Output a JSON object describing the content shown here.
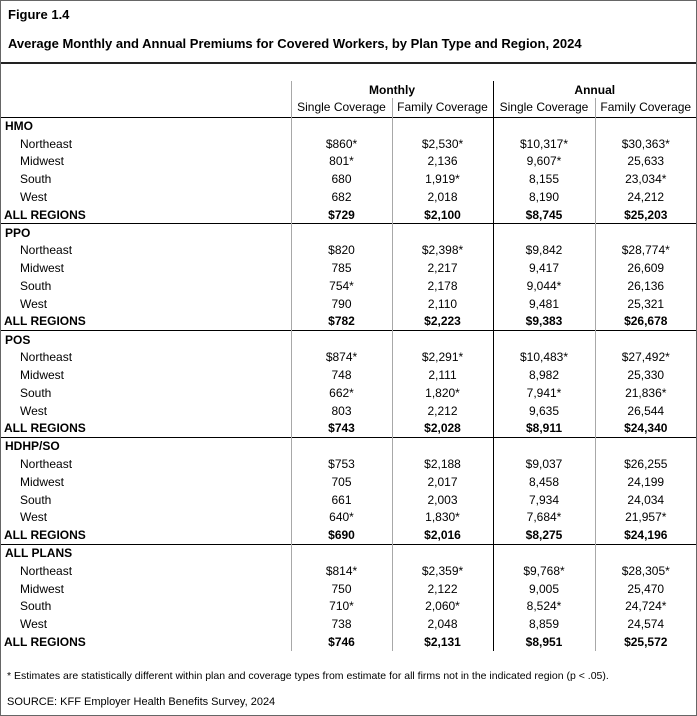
{
  "figure": {
    "label": "Figure 1.4",
    "title": "Average Monthly and Annual Premiums for Covered Workers, by Plan Type and Region, 2024"
  },
  "chart_data": {
    "type": "table",
    "title": "Average Monthly and Annual Premiums for Covered Workers, by Plan Type and Region, 2024",
    "column_groups": [
      "Monthly",
      "Annual"
    ],
    "columns": [
      "Single Coverage",
      "Family Coverage",
      "Single Coverage",
      "Family Coverage"
    ],
    "sections": [
      {
        "plan": "HMO",
        "rows": [
          {
            "label": "Northeast",
            "values": [
              "$860*",
              "$2,530*",
              "$10,317*",
              "$30,363*"
            ],
            "total": false
          },
          {
            "label": "Midwest",
            "values": [
              "801*",
              "2,136",
              "9,607*",
              "25,633"
            ],
            "total": false
          },
          {
            "label": "South",
            "values": [
              "680",
              "1,919*",
              "8,155",
              "23,034*"
            ],
            "total": false
          },
          {
            "label": "West",
            "values": [
              "682",
              "2,018",
              "8,190",
              "24,212"
            ],
            "total": false
          },
          {
            "label": "ALL REGIONS",
            "values": [
              "$729",
              "$2,100",
              "$8,745",
              "$25,203"
            ],
            "total": true
          }
        ]
      },
      {
        "plan": "PPO",
        "rows": [
          {
            "label": "Northeast",
            "values": [
              "$820",
              "$2,398*",
              "$9,842",
              "$28,774*"
            ],
            "total": false
          },
          {
            "label": "Midwest",
            "values": [
              "785",
              "2,217",
              "9,417",
              "26,609"
            ],
            "total": false
          },
          {
            "label": "South",
            "values": [
              "754*",
              "2,178",
              "9,044*",
              "26,136"
            ],
            "total": false
          },
          {
            "label": "West",
            "values": [
              "790",
              "2,110",
              "9,481",
              "25,321"
            ],
            "total": false
          },
          {
            "label": "ALL REGIONS",
            "values": [
              "$782",
              "$2,223",
              "$9,383",
              "$26,678"
            ],
            "total": true
          }
        ]
      },
      {
        "plan": "POS",
        "rows": [
          {
            "label": "Northeast",
            "values": [
              "$874*",
              "$2,291*",
              "$10,483*",
              "$27,492*"
            ],
            "total": false
          },
          {
            "label": "Midwest",
            "values": [
              "748",
              "2,111",
              "8,982",
              "25,330"
            ],
            "total": false
          },
          {
            "label": "South",
            "values": [
              "662*",
              "1,820*",
              "7,941*",
              "21,836*"
            ],
            "total": false
          },
          {
            "label": "West",
            "values": [
              "803",
              "2,212",
              "9,635",
              "26,544"
            ],
            "total": false
          },
          {
            "label": "ALL REGIONS",
            "values": [
              "$743",
              "$2,028",
              "$8,911",
              "$24,340"
            ],
            "total": true
          }
        ]
      },
      {
        "plan": "HDHP/SO",
        "rows": [
          {
            "label": "Northeast",
            "values": [
              "$753",
              "$2,188",
              "$9,037",
              "$26,255"
            ],
            "total": false
          },
          {
            "label": "Midwest",
            "values": [
              "705",
              "2,017",
              "8,458",
              "24,199"
            ],
            "total": false
          },
          {
            "label": "South",
            "values": [
              "661",
              "2,003",
              "7,934",
              "24,034"
            ],
            "total": false
          },
          {
            "label": "West",
            "values": [
              "640*",
              "1,830*",
              "7,684*",
              "21,957*"
            ],
            "total": false
          },
          {
            "label": "ALL REGIONS",
            "values": [
              "$690",
              "$2,016",
              "$8,275",
              "$24,196"
            ],
            "total": true
          }
        ]
      },
      {
        "plan": "ALL PLANS",
        "rows": [
          {
            "label": "Northeast",
            "values": [
              "$814*",
              "$2,359*",
              "$9,768*",
              "$28,305*"
            ],
            "total": false
          },
          {
            "label": "Midwest",
            "values": [
              "750",
              "2,122",
              "9,005",
              "25,470"
            ],
            "total": false
          },
          {
            "label": "South",
            "values": [
              "710*",
              "2,060*",
              "8,524*",
              "24,724*"
            ],
            "total": false
          },
          {
            "label": "West",
            "values": [
              "738",
              "2,048",
              "8,859",
              "24,574"
            ],
            "total": false
          },
          {
            "label": "ALL REGIONS",
            "values": [
              "$746",
              "$2,131",
              "$8,951",
              "$25,572"
            ],
            "total": true
          }
        ]
      }
    ]
  },
  "footnote": "* Estimates are statistically different within plan and coverage types from estimate for all firms not in the indicated region (p < .05).",
  "source": "SOURCE: KFF Employer Health Benefits Survey, 2024"
}
